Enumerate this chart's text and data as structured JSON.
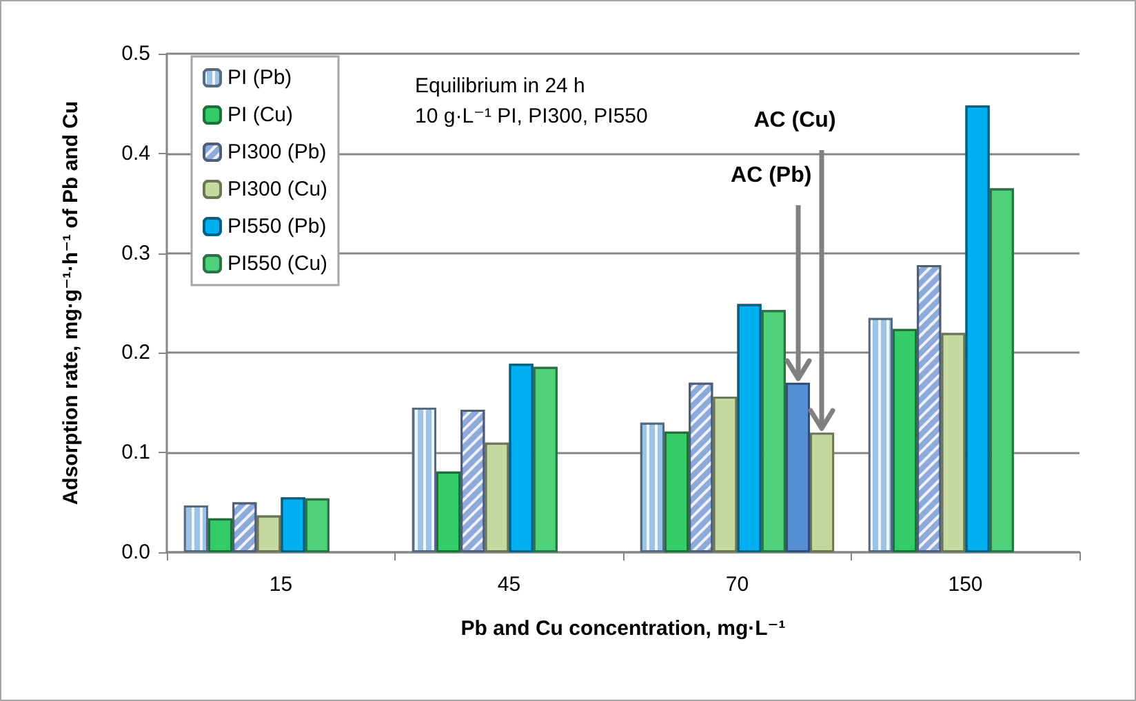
{
  "chart_data": {
    "type": "bar",
    "xlabel": "Pb and Cu concentration, mg·L⁻¹",
    "ylabel": "Adsorption rate, mg·g⁻¹·h⁻¹ of Pb and Cu",
    "categories": [
      "15",
      "45",
      "70",
      "150"
    ],
    "series": [
      {
        "name": "PI (Pb)",
        "color": "#9dc3e6",
        "values": [
          0.047,
          0.145,
          0.13,
          0.235
        ]
      },
      {
        "name": "PI (Cu)",
        "color": "#33cc66",
        "values": [
          0.034,
          0.081,
          0.121,
          0.224
        ]
      },
      {
        "name": "PI300 (Pb)",
        "color": "#8eaadb",
        "values": [
          0.05,
          0.143,
          0.17,
          0.288
        ]
      },
      {
        "name": "PI300 (Cu)",
        "color": "#c5d9a0",
        "values": [
          0.037,
          0.11,
          0.156,
          0.22
        ]
      },
      {
        "name": "PI550 (Pb)",
        "color": "#00b0f0",
        "values": [
          0.055,
          0.189,
          0.249,
          0.448
        ]
      },
      {
        "name": "PI550 (Cu)",
        "color": "#4fd17a",
        "values": [
          0.054,
          0.186,
          0.243,
          0.365
        ]
      },
      {
        "color": "#558ed5",
        "values": [
          null,
          null,
          0.17,
          null
        ]
      },
      {
        "color": "#c3d69b",
        "values": [
          null,
          null,
          0.12,
          null
        ]
      }
    ],
    "annotations": [
      "Equilibrium in 24 h",
      "10 g·L⁻¹ PI, PI300, PI550",
      "AC (Pb)",
      "AC (Cu)"
    ],
    "ylim": [
      0,
      0.5
    ],
    "yticks": [
      {
        "value": 0,
        "label": "0.0"
      },
      0.1,
      0.2,
      0.3,
      0.4,
      0.5
    ],
    "grid": "y",
    "legend": "top left"
  }
}
